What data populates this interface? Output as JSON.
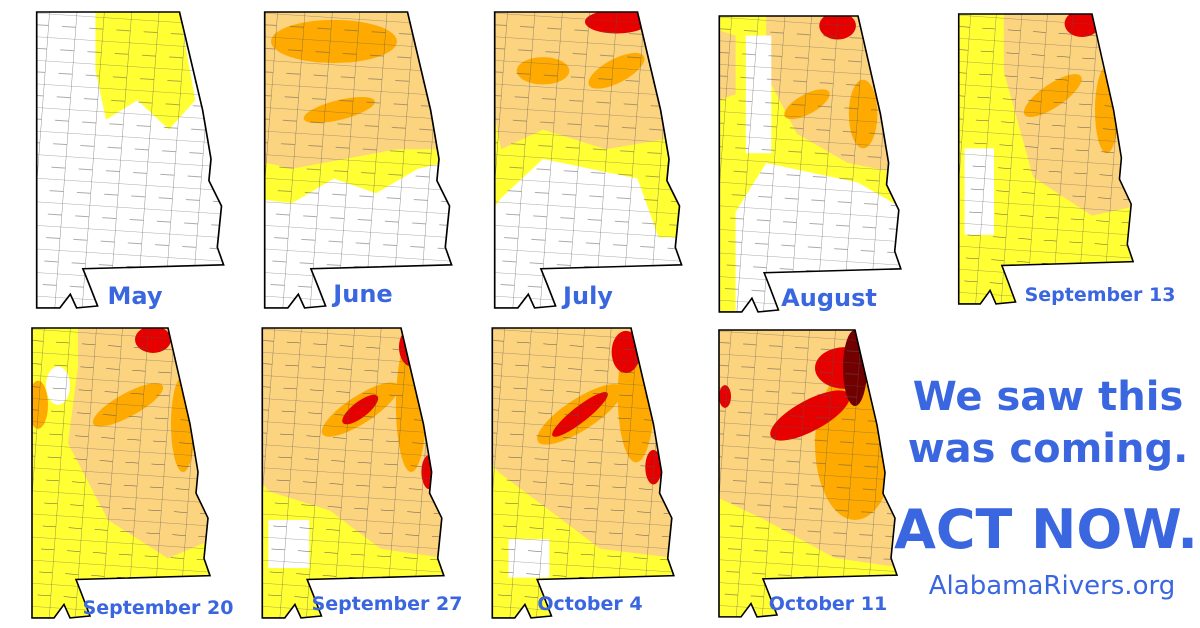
{
  "maps": [
    {
      "label": "May"
    },
    {
      "label": "June"
    },
    {
      "label": "July"
    },
    {
      "label": "August"
    },
    {
      "label": "September 13"
    },
    {
      "label": "September 20"
    },
    {
      "label": "September 27"
    },
    {
      "label": "October 4"
    },
    {
      "label": "October 11"
    }
  ],
  "message": {
    "line1": "We saw this",
    "line2": "was coming.",
    "cta": "ACT NOW.",
    "url": "AlabamaRivers.org"
  }
}
